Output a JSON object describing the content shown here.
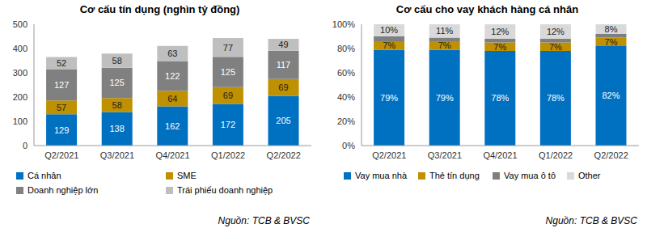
{
  "chart_data": [
    {
      "type": "bar",
      "title": "Cơ cấu tín dụng (nghìn tỷ đồng)",
      "stacked": true,
      "data_labels": true,
      "legend": "bottom",
      "categories": [
        "Q2/2021",
        "Q3/2021",
        "Q4/2021",
        "Q1/2022",
        "Q2/2022"
      ],
      "ylim": [
        0,
        500
      ],
      "yticks": [
        0,
        100,
        200,
        300,
        400,
        500
      ],
      "series": [
        {
          "name": "Cá nhân",
          "color": "#0070C0",
          "values": [
            129,
            138,
            162,
            172,
            205
          ]
        },
        {
          "name": "SME",
          "color": "#BF9000",
          "values": [
            57,
            58,
            64,
            69,
            69
          ]
        },
        {
          "name": "Doanh nghiệp lớn",
          "color": "#808080",
          "values": [
            127,
            125,
            122,
            125,
            117
          ]
        },
        {
          "name": "Trái phiếu doanh nghiệp",
          "color": "#BFBFBF",
          "values": [
            52,
            58,
            63,
            77,
            49
          ]
        }
      ],
      "source": "Nguồn: TCB & BVSC"
    },
    {
      "type": "bar",
      "title": "Cơ cấu cho vay khách hàng cá nhân",
      "stacked": true,
      "data_labels": true,
      "legend": "bottom",
      "categories": [
        "Q2/2021",
        "Q3/2021",
        "Q4/2021",
        "Q1/2022",
        "Q2/2022"
      ],
      "ylim": [
        0,
        100
      ],
      "yticks": [
        {
          "value": 0,
          "label": "0%"
        },
        {
          "value": 20,
          "label": "20%"
        },
        {
          "value": 40,
          "label": "40%"
        },
        {
          "value": 60,
          "label": "60%"
        },
        {
          "value": 80,
          "label": "80%"
        },
        {
          "value": 100,
          "label": "100%"
        }
      ],
      "series": [
        {
          "name": "Vay mua nhà",
          "color": "#0070C0",
          "values": [
            79,
            79,
            78,
            78,
            82
          ],
          "value_labels": [
            "79%",
            "79%",
            "78%",
            "78%",
            "82%"
          ]
        },
        {
          "name": "Thẻ tín dụng",
          "color": "#BF9000",
          "values": [
            7,
            7,
            7,
            7,
            7
          ],
          "value_labels": [
            "7%",
            "7%",
            "7%",
            "7%",
            "7%"
          ]
        },
        {
          "name": "Vay mua ô tô",
          "color": "#7F7F7F",
          "values": [
            4,
            3,
            3,
            3,
            3
          ],
          "data_labels": false
        },
        {
          "name": "Other",
          "color": "#D9D9D9",
          "values": [
            10,
            11,
            12,
            12,
            8
          ],
          "value_labels": [
            "10%",
            "11%",
            "12%",
            "12%",
            "8%"
          ]
        }
      ],
      "source": "Nguồn: TCB & BVSC"
    }
  ]
}
